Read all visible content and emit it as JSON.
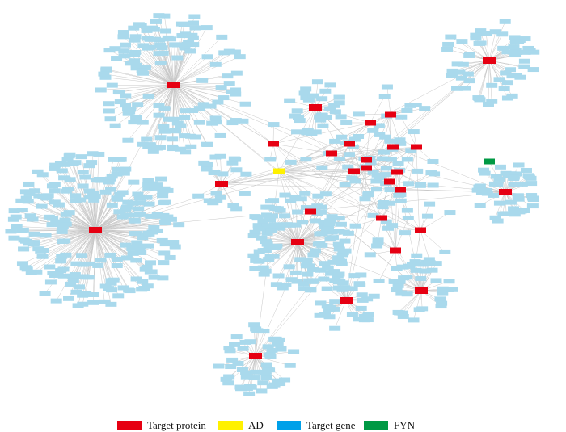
{
  "legend": [
    {
      "label": "Target protein",
      "color": "#e60012"
    },
    {
      "label": "AD",
      "color": "#fff100"
    },
    {
      "label": "Target gene",
      "color": "#00a0e9"
    },
    {
      "label": "FYN",
      "color": "#009944"
    }
  ]
}
